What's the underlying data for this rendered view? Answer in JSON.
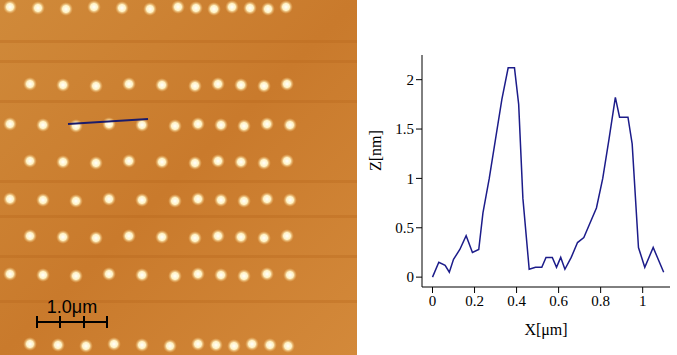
{
  "chart_data": {
    "type": "line",
    "x_label": "X[μm]",
    "y_label": "Z[nm]",
    "x": [
      0,
      0.03,
      0.06,
      0.08,
      0.1,
      0.13,
      0.16,
      0.19,
      0.22,
      0.24,
      0.27,
      0.3,
      0.33,
      0.36,
      0.39,
      0.41,
      0.43,
      0.46,
      0.49,
      0.52,
      0.54,
      0.57,
      0.59,
      0.61,
      0.63,
      0.66,
      0.69,
      0.72,
      0.75,
      0.78,
      0.81,
      0.84,
      0.87,
      0.89,
      0.93,
      0.95,
      0.98,
      1.01,
      1.05,
      1.1
    ],
    "values": [
      0,
      0.15,
      0.12,
      0.05,
      0.18,
      0.28,
      0.42,
      0.25,
      0.28,
      0.65,
      1.0,
      1.4,
      1.8,
      2.12,
      2.12,
      1.75,
      0.8,
      0.08,
      0.1,
      0.1,
      0.2,
      0.2,
      0.1,
      0.2,
      0.08,
      0.2,
      0.35,
      0.4,
      0.55,
      0.7,
      1.0,
      1.4,
      1.82,
      1.62,
      1.62,
      1.35,
      0.3,
      0.1,
      0.3,
      0.05
    ],
    "color": "#1c1c8a",
    "xlim": [
      -0.05,
      1.13
    ],
    "ylim": [
      -0.1,
      2.25
    ],
    "xticks": [
      0,
      0.2,
      0.4,
      0.6,
      0.8,
      1
    ],
    "yticks": [
      0,
      0.5,
      1,
      1.5,
      2
    ],
    "grid": false
  },
  "image_panel": {
    "scale_bar_label": "1.0μm"
  }
}
